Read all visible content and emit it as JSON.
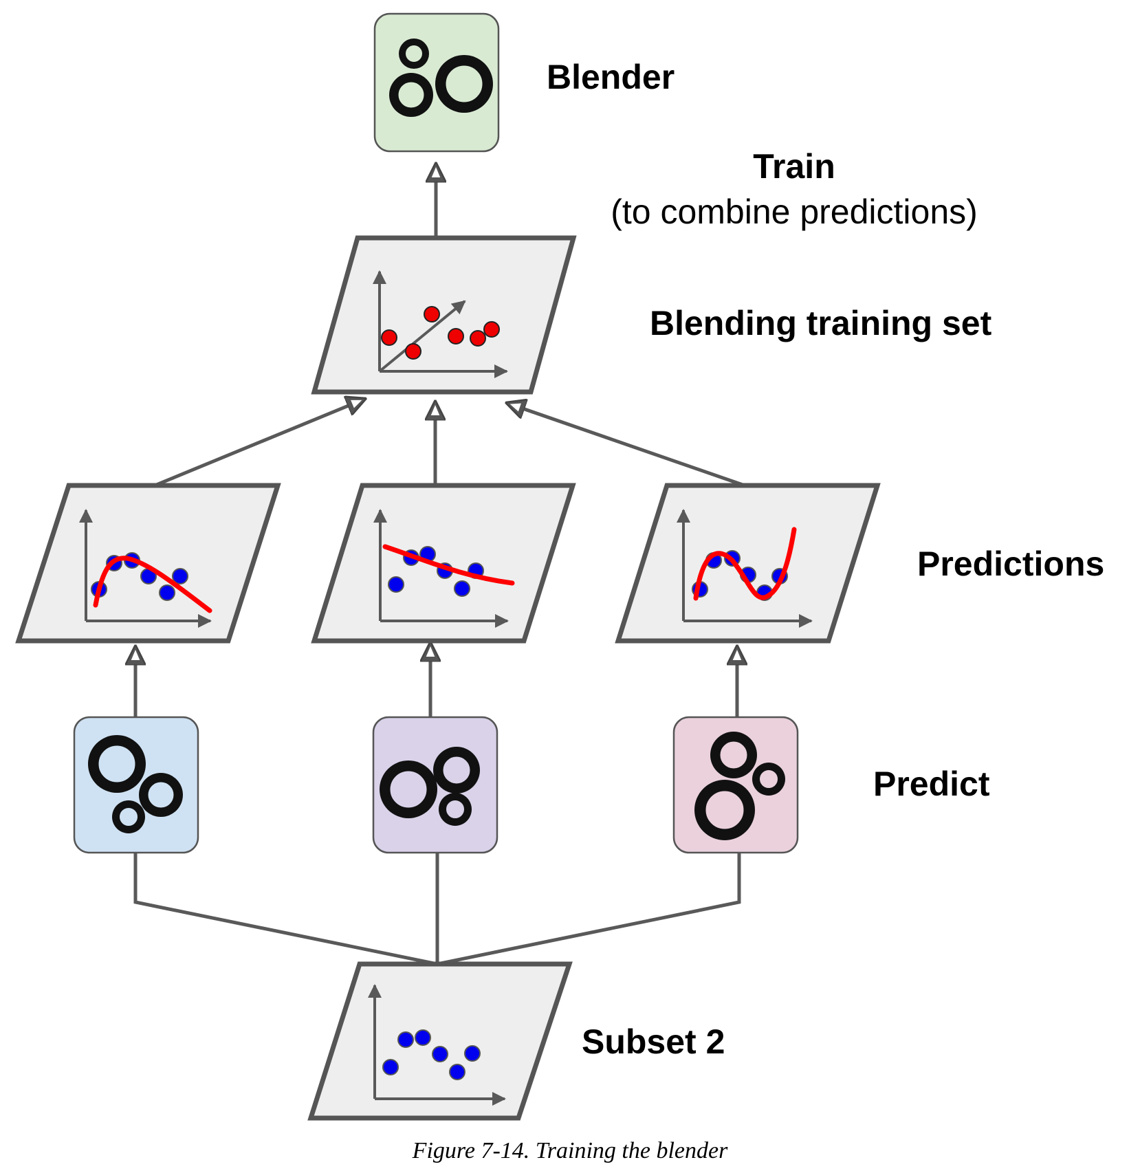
{
  "labels": {
    "blender": "Blender",
    "train": "Train",
    "train_sub": "(to combine predictions)",
    "blending_set": "Blending training set",
    "predictions": "Predictions",
    "predict": "Predict",
    "subset": "Subset 2"
  },
  "caption": "Figure 7-14. Training the blender",
  "colors": {
    "blender_box": "#d9ead3",
    "predictor_1": "#cfe2f3",
    "predictor_2": "#d9d2e9",
    "predictor_3": "#ead1dc",
    "panel": "#eeeeee",
    "stroke": "#555555",
    "points_blue": "#0000ee",
    "points_red": "#ee0000",
    "curve": "#ff0000"
  },
  "icons": [
    "gears-icon",
    "scatter-plot-icon",
    "arrow-up-icon"
  ]
}
